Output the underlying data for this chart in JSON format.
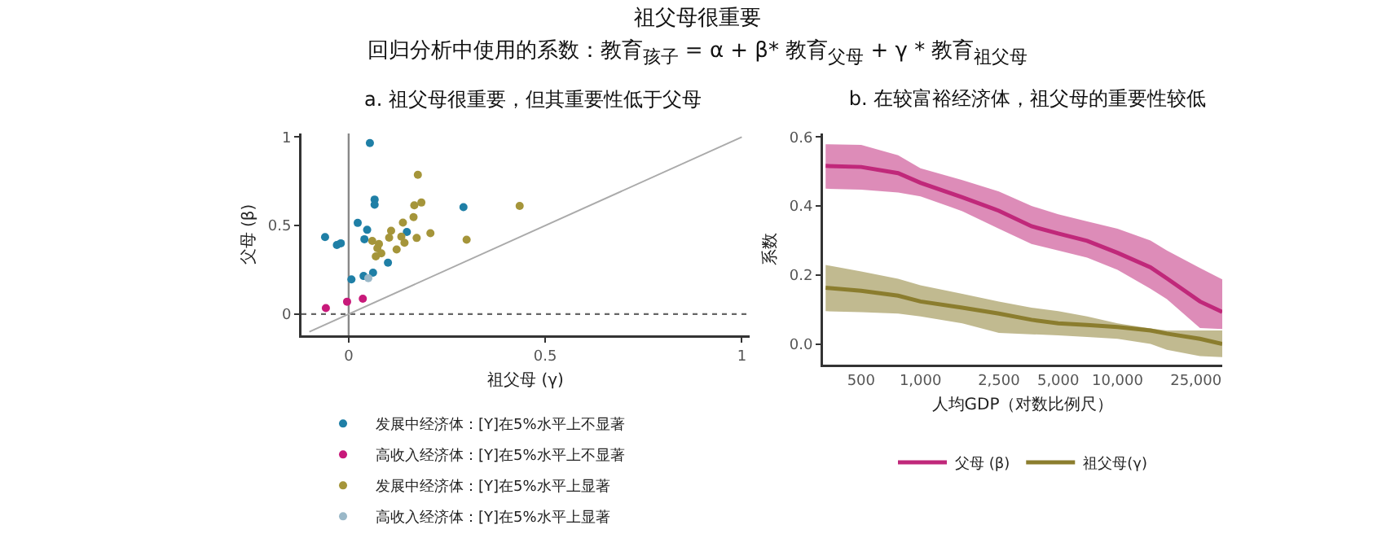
{
  "chart_data": [
    {
      "type": "scatter",
      "title": "a. 祖父母很重要，但其重要性低于父母",
      "xlabel": "祖父母 (γ)",
      "ylabel": "父母 (β)",
      "annotations": [
        "祖父母很重要",
        "回归分析中使用的系数：教育$_{孩子}$ = α + β* 教育$_{父母}$ + γ * 教育$_{祖父母}$"
      ],
      "xlim": [
        -0.12,
        1.02
      ],
      "ylim": [
        -0.12,
        1.02
      ],
      "xticks": [
        0,
        0.5,
        1
      ],
      "yticks": [
        0,
        0.5,
        1
      ],
      "grid": false,
      "legend": "bottom",
      "marker": "circle",
      "ref_lines": [
        {
          "axis": "y",
          "value": 0,
          "color": "#666666",
          "line_style": "dotted"
        },
        {
          "axis": "x",
          "value": 0,
          "color": "#888888",
          "line_style": "solid"
        }
      ],
      "series": [
        {
          "name": "发展中经济体：[Y]在5%水平上不显著",
          "color": "#1f7fa6",
          "x": [
            0.054,
            -0.06,
            -0.03,
            -0.02,
            0.023,
            0.047,
            0.04,
            0.066,
            0.066,
            0.007,
            0.038,
            0.062,
            0.1,
            0.144,
            0.148,
            0.292
          ],
          "values": [
            0.966,
            0.435,
            0.39,
            0.4,
            0.515,
            0.476,
            0.423,
            0.647,
            0.618,
            0.196,
            0.215,
            0.234,
            0.29,
            null,
            0.464,
            0.604
          ]
        },
        {
          "name": "高收入经济体：[Y]在5%水平上不显著",
          "color": "#c8197a",
          "x": [
            -0.058,
            -0.004,
            0.036
          ],
          "values": [
            0.034,
            0.07,
            0.087
          ]
        },
        {
          "name": "发展中经济体：[Y]在5%水平上显著",
          "color": "#a5953a",
          "x": [
            0.176,
            0.167,
            0.185,
            0.165,
            0.138,
            0.208,
            0.173,
            0.142,
            0.108,
            0.103,
            0.077,
            0.073,
            0.083,
            0.069,
            0.06,
            0.122,
            0.134,
            0.3,
            0.435
          ],
          "values": [
            0.787,
            0.614,
            0.63,
            0.548,
            0.517,
            0.457,
            0.43,
            0.403,
            0.471,
            0.432,
            0.396,
            0.372,
            0.343,
            0.326,
            0.413,
            0.365,
            0.437,
            0.42,
            0.611
          ]
        },
        {
          "name": "高收入经济体：[Y]在5%水平上显著",
          "color": "#9ab8c8",
          "x": [
            0.05
          ],
          "values": [
            0.203
          ]
        },
        {
          "type": "line",
          "color": "#aaaaaa",
          "marker": "none",
          "x": [
            -0.1,
            1
          ],
          "values": [
            -0.1,
            1
          ]
        }
      ]
    },
    {
      "type": "line",
      "title": "b. 在较富裕经济体，祖父母的重要性较低",
      "xlabel": "人均GDP（对数比例尺）",
      "ylabel": "系数",
      "log": "x",
      "xlim": [
        320,
        34000
      ],
      "ylim": [
        -0.06,
        0.61
      ],
      "xticks": [
        500,
        {
          "value": 1000,
          "label": "1,000"
        },
        {
          "value": 2500,
          "label": "2,500"
        },
        {
          "value": 5000,
          "label": "5,000"
        },
        {
          "value": 10000,
          "label": "10,000"
        },
        {
          "value": 25000,
          "label": "25,000"
        }
      ],
      "yticks": [
        {
          "value": 0,
          "label": "0.0"
        },
        0.2,
        0.4,
        0.6
      ],
      "grid": false,
      "legend": "bottom",
      "marker": "none",
      "line_style": "solid",
      "x": [
        330,
        500,
        770,
        1000,
        1630,
        2500,
        3660,
        5000,
        7010,
        10000,
        14700,
        17800,
        26200,
        34000
      ],
      "series": [
        {
          "name": "父母 (β)",
          "color": "#c0287a",
          "values": [
            0.516,
            0.513,
            0.495,
            0.467,
            0.425,
            0.386,
            0.341,
            0.32,
            0.299,
            0.264,
            0.222,
            0.19,
            0.123,
            0.093
          ],
          "upper": [
            0.579,
            0.577,
            0.547,
            0.509,
            0.475,
            0.442,
            0.4,
            0.376,
            0.355,
            0.334,
            0.3,
            0.271,
            0.22,
            0.187
          ],
          "lower": [
            0.45,
            0.447,
            0.439,
            0.428,
            0.385,
            0.334,
            0.29,
            0.271,
            0.25,
            0.215,
            0.16,
            0.13,
            0.046,
            0.043
          ]
        },
        {
          "name": "祖父母(γ)",
          "color": "#8b7d2e",
          "values": [
            0.163,
            0.154,
            0.14,
            0.123,
            0.105,
            0.088,
            0.07,
            0.06,
            0.055,
            0.049,
            0.039,
            0.03,
            0.015,
            0
          ],
          "upper": [
            0.229,
            0.21,
            0.189,
            0.17,
            0.145,
            0.123,
            0.105,
            0.095,
            0.08,
            0.06,
            0.045,
            0.039,
            0.039,
            0.039
          ],
          "lower": [
            0.095,
            0.092,
            0.088,
            0.08,
            0.06,
            0.032,
            0.028,
            0.025,
            0.02,
            0.015,
            0,
            -0.017,
            -0.035,
            -0.038
          ]
        }
      ]
    }
  ]
}
